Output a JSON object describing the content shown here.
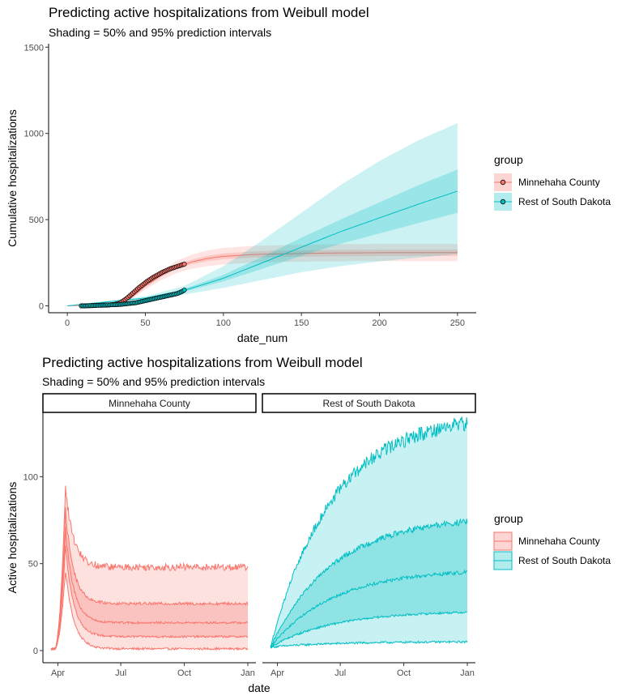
{
  "colors": {
    "red": "#f8766d",
    "teal": "#00bfc4",
    "axis": "#000000",
    "tick_text": "#4d4d4d"
  },
  "chart_data": [
    {
      "type": "line",
      "title": "Predicting active hospitalizations from Weibull model",
      "subtitle": "Shading = 50% and 95% prediction intervals",
      "xlabel": "date_num",
      "ylabel": "Cumulative hospitalizations",
      "xlim": [
        -12,
        262
      ],
      "ylim": [
        -40,
        1520
      ],
      "x_ticks": [
        0,
        50,
        100,
        150,
        200,
        250
      ],
      "y_ticks": [
        0,
        500,
        1000,
        1500
      ],
      "grid": false,
      "legend": {
        "title": "group",
        "position": "right",
        "entries": [
          "Minnehaha County",
          "Rest of South Dakota"
        ]
      },
      "series": [
        {
          "name": "Minnehaha County",
          "color": "#f8766d",
          "observed": {
            "x_start": 9,
            "x_end": 75,
            "values": [
              0,
              0,
              0,
              1,
              1,
              1,
              1,
              2,
              2,
              2,
              3,
              3,
              3,
              3,
              4,
              4,
              4,
              5,
              5,
              6,
              7,
              8,
              10,
              12,
              15,
              19,
              24,
              30,
              36,
              43,
              50,
              58,
              66,
              74,
              82,
              90,
              98,
              106,
              113,
              120,
              127,
              134,
              141,
              147,
              153,
              159,
              165,
              170,
              175,
              180,
              185,
              190,
              195,
              199,
              203,
              207,
              211,
              215,
              218,
              221,
              224,
              227,
              230,
              233,
              236,
              239,
              242
            ]
          },
          "fit": {
            "x": [
              0,
              30,
              40,
              50,
              60,
              70,
              80,
              90,
              100,
              120,
              140,
              160,
              180,
              200,
              225,
              250
            ],
            "median": [
              0,
              8,
              40,
              115,
              175,
              225,
              255,
              275,
              287,
              298,
              302,
              305,
              307,
              308,
              308,
              308
            ],
            "q25": [
              0,
              7,
              37,
              108,
              166,
              214,
              242,
              259,
              270,
              280,
              284,
              286,
              288,
              289,
              289,
              289
            ],
            "q75": [
              0,
              9,
              43,
              122,
              184,
              236,
              268,
              291,
              304,
              316,
              320,
              323,
              325,
              326,
              326,
              326
            ],
            "q025": [
              0,
              5,
              32,
              95,
              148,
              190,
              215,
              230,
              240,
              251,
              255,
              257,
              259,
              260,
              260,
              260
            ],
            "q975": [
              0,
              11,
              48,
              135,
              202,
              260,
              298,
              322,
              336,
              348,
              352,
              356,
              358,
              359,
              359,
              359
            ]
          }
        },
        {
          "name": "Rest of South Dakota",
          "color": "#00bfc4",
          "observed": {
            "x_start": 9,
            "x_end": 75,
            "values": [
              0,
              0,
              0,
              0,
              0,
              1,
              1,
              1,
              2,
              2,
              3,
              3,
              3,
              4,
              4,
              4,
              5,
              5,
              5,
              6,
              6,
              6,
              7,
              7,
              8,
              8,
              9,
              10,
              11,
              12,
              13,
              14,
              15,
              16,
              17,
              18,
              20,
              22,
              24,
              26,
              28,
              30,
              32,
              34,
              36,
              38,
              40,
              42,
              44,
              46,
              48,
              50,
              52,
              54,
              56,
              58,
              60,
              62,
              64,
              66,
              68,
              70,
              73,
              77,
              81,
              86,
              92
            ]
          },
          "fit": {
            "x": [
              0,
              50,
              75,
              100,
              125,
              150,
              175,
              200,
              225,
              250
            ],
            "median": [
              0,
              45,
              90,
              160,
              250,
              340,
              430,
              510,
              590,
              665
            ],
            "q25": [
              0,
              42,
              82,
              142,
              215,
              290,
              360,
              420,
              480,
              540
            ],
            "q75": [
              0,
              48,
              98,
              180,
              285,
              395,
              500,
              600,
              700,
              790
            ],
            "q025": [
              0,
              36,
              66,
              104,
              150,
              195,
              230,
              258,
              280,
              300
            ],
            "q975": [
              0,
              55,
              115,
              230,
              380,
              540,
              700,
              840,
              960,
              1060
            ]
          }
        }
      ]
    },
    {
      "type": "line",
      "title": "Predicting active hospitalizations from Weibull model",
      "subtitle": "Shading = 50% and 95% prediction intervals",
      "xlabel": "date",
      "ylabel": "Active hospitalizations",
      "x_ticks": [
        "Apr",
        "Jul",
        "Oct",
        "Jan"
      ],
      "y_ticks": [
        0,
        50,
        100
      ],
      "ylim": [
        -7,
        137
      ],
      "grid": false,
      "legend": {
        "title": "group",
        "position": "right",
        "entries": [
          "Minnehaha County",
          "Rest of South Dakota"
        ]
      },
      "panels": [
        {
          "strip": "Minnehaha County",
          "color": "#f8766d",
          "x_start": "2020-03-22",
          "x_end": "2021-01-01",
          "quantiles": [
            "q025",
            "q25",
            "q50",
            "q75",
            "q975"
          ],
          "peak_day": 21,
          "peak": {
            "q025": 46,
            "q25": 60,
            "q50": 70,
            "q75": 80,
            "q975": 94
          },
          "plateau": {
            "q025": 1,
            "q25": 8,
            "q50": 16,
            "q75": 27,
            "q975": 48
          }
        },
        {
          "strip": "Rest of South Dakota",
          "color": "#00bfc4",
          "x_start": "2020-03-22",
          "x_end": "2021-01-01",
          "quantiles": [
            "q025",
            "q25",
            "q50",
            "q75",
            "q975"
          ],
          "final": {
            "q025": 5,
            "q25": 22,
            "q50": 45,
            "q75": 74,
            "q975": 131
          }
        }
      ]
    }
  ]
}
